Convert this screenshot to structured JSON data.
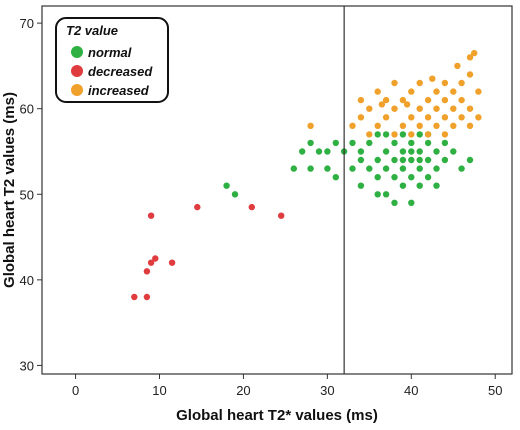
{
  "chart_data": {
    "type": "scatter",
    "title": "",
    "xlabel": "Global heart T2* values (ms)",
    "ylabel": "Global heart T2 values (ms)",
    "xlim": [
      -4,
      52
    ],
    "ylim": [
      29,
      72
    ],
    "xticks": [
      0,
      10,
      20,
      30,
      40,
      50
    ],
    "yticks": [
      30,
      40,
      50,
      60,
      70
    ],
    "grid": false,
    "reference_line": {
      "axis": "x",
      "value": 32
    },
    "legend": {
      "title": "T2 value",
      "placement": "top-left",
      "entries": [
        {
          "label": "normal",
          "color": "#2fb043"
        },
        {
          "label": "decreased",
          "color": "#e03b3e"
        },
        {
          "label": "increased",
          "color": "#f0a12b"
        }
      ]
    },
    "series": [
      {
        "name": "normal",
        "color": "#2fb043",
        "points": [
          [
            18,
            51
          ],
          [
            19,
            50
          ],
          [
            26,
            53
          ],
          [
            27,
            55
          ],
          [
            28,
            53
          ],
          [
            28,
            56
          ],
          [
            29,
            55
          ],
          [
            30,
            53
          ],
          [
            30,
            55
          ],
          [
            31,
            56
          ],
          [
            31,
            52
          ],
          [
            32,
            55
          ],
          [
            33,
            56
          ],
          [
            33,
            53
          ],
          [
            34,
            54
          ],
          [
            34,
            51
          ],
          [
            35,
            56
          ],
          [
            35,
            53
          ],
          [
            36,
            57
          ],
          [
            36,
            54
          ],
          [
            36,
            52
          ],
          [
            37,
            55
          ],
          [
            37,
            53
          ],
          [
            37,
            50
          ],
          [
            38,
            56
          ],
          [
            38,
            54
          ],
          [
            38,
            52
          ],
          [
            38,
            49
          ],
          [
            39,
            57
          ],
          [
            39,
            55
          ],
          [
            39,
            53
          ],
          [
            39,
            51
          ],
          [
            40,
            56
          ],
          [
            40,
            55
          ],
          [
            40,
            54
          ],
          [
            40,
            52
          ],
          [
            40,
            49
          ],
          [
            41,
            57
          ],
          [
            41,
            55
          ],
          [
            41,
            54
          ],
          [
            41,
            53
          ],
          [
            41,
            51
          ],
          [
            42,
            56
          ],
          [
            42,
            54
          ],
          [
            42,
            52
          ],
          [
            43,
            55
          ],
          [
            43,
            53
          ],
          [
            44,
            56
          ],
          [
            44,
            54
          ],
          [
            45,
            55
          ],
          [
            46,
            53
          ],
          [
            47,
            54
          ],
          [
            37,
            57
          ],
          [
            42,
            57
          ],
          [
            34,
            55
          ],
          [
            36,
            50
          ],
          [
            39,
            54
          ],
          [
            43,
            51
          ]
        ]
      },
      {
        "name": "decreased",
        "color": "#e03b3e",
        "points": [
          [
            7,
            38
          ],
          [
            8.5,
            38
          ],
          [
            8.5,
            41
          ],
          [
            9,
            42
          ],
          [
            9.5,
            42.5
          ],
          [
            9,
            47.5
          ],
          [
            11.5,
            42
          ],
          [
            14.5,
            48.5
          ],
          [
            21,
            48.5
          ],
          [
            24.5,
            47.5
          ]
        ]
      },
      {
        "name": "increased",
        "color": "#f0a12b",
        "points": [
          [
            28,
            58
          ],
          [
            33,
            58
          ],
          [
            34,
            59
          ],
          [
            34,
            61
          ],
          [
            35,
            57
          ],
          [
            35,
            60
          ],
          [
            36,
            58
          ],
          [
            36,
            62
          ],
          [
            37,
            59
          ],
          [
            37,
            61
          ],
          [
            38,
            57
          ],
          [
            38,
            60
          ],
          [
            38,
            63
          ],
          [
            39,
            58
          ],
          [
            39,
            61
          ],
          [
            40,
            57
          ],
          [
            40,
            59
          ],
          [
            40,
            62
          ],
          [
            41,
            58
          ],
          [
            41,
            60
          ],
          [
            41,
            63
          ],
          [
            42,
            57
          ],
          [
            42,
            59
          ],
          [
            42,
            61
          ],
          [
            43,
            58
          ],
          [
            43,
            60
          ],
          [
            43,
            62
          ],
          [
            44,
            57
          ],
          [
            44,
            59
          ],
          [
            44,
            61
          ],
          [
            44,
            63
          ],
          [
            45,
            58
          ],
          [
            45,
            60
          ],
          [
            45,
            62
          ],
          [
            46,
            59
          ],
          [
            46,
            61
          ],
          [
            46,
            63
          ],
          [
            47,
            58
          ],
          [
            47,
            60
          ],
          [
            47,
            64
          ],
          [
            47,
            66
          ],
          [
            48,
            59
          ],
          [
            48,
            62
          ],
          [
            47.5,
            66.5
          ],
          [
            39.5,
            60.5
          ],
          [
            36.5,
            60.5
          ],
          [
            42.5,
            63.5
          ],
          [
            45.5,
            65
          ]
        ]
      }
    ]
  }
}
